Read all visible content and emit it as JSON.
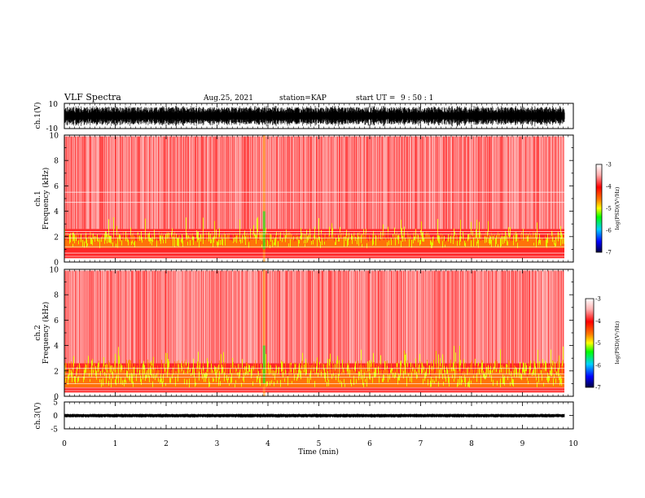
{
  "header": {
    "title": "VLF Spectra",
    "date": "Aug.25, 2021",
    "station": "station=KAP",
    "start_prefix": "start UT =",
    "start_time": "9 : 50 : 1"
  },
  "colors": {
    "spectrogram_base": "#ff2a2a",
    "spectrogram_band": "#ff8c00",
    "spectrogram_hot": "#e6ff00",
    "spectrogram_peak": "#22dd22",
    "waveform": "#000000",
    "colorbar": [
      "#ffffff",
      "#ff0000",
      "#ff6600",
      "#ffff00",
      "#00ff00",
      "#00ccff",
      "#0000ff",
      "#000044"
    ]
  },
  "chart_data": [
    {
      "type": "line",
      "name": "ch.1 waveform",
      "ylabel": "ch.1(V)",
      "ylim": [
        -10,
        10
      ],
      "yticks": [
        "10",
        "-10"
      ],
      "xlim": [
        0,
        10
      ],
      "amplitude_range_v": [
        -7,
        7
      ]
    },
    {
      "type": "heatmap",
      "name": "ch.1 spectrogram",
      "ylabel_line1": "ch.1",
      "ylabel_line2": "Frequency (kHz)",
      "ylim": [
        0,
        10
      ],
      "yticks": [
        "0",
        "2",
        "4",
        "6",
        "8",
        "10"
      ],
      "xlim": [
        0,
        10
      ],
      "colorbar": {
        "label": "log(PSD)(V²/Hz)",
        "range": [
          -7,
          -3
        ],
        "ticks": [
          "-3",
          "-4",
          "-5",
          "-6",
          "-7"
        ]
      }
    },
    {
      "type": "heatmap",
      "name": "ch.2 spectrogram",
      "ylabel_line1": "ch.2",
      "ylabel_line2": "Frequency (kHz)",
      "ylim": [
        0,
        10
      ],
      "yticks": [
        "0",
        "2",
        "4",
        "6",
        "8",
        "10"
      ],
      "xlim": [
        0,
        10
      ],
      "colorbar": {
        "label": "log(PSD)(V²/Hz)",
        "range": [
          -7,
          -3
        ],
        "ticks": [
          "-3",
          "-4",
          "-5",
          "-6",
          "-7"
        ]
      }
    },
    {
      "type": "line",
      "name": "ch.3 waveform",
      "ylabel": "ch.3(V)",
      "ylim": [
        -5,
        5
      ],
      "yticks": [
        "5",
        "0",
        "-5"
      ],
      "xlim": [
        0,
        10
      ],
      "amplitude_range_v": [
        -0.8,
        0.6
      ]
    }
  ],
  "xaxis": {
    "label": "Time (min)",
    "ticks": [
      "0",
      "1",
      "2",
      "3",
      "4",
      "5",
      "6",
      "7",
      "8",
      "9",
      "10"
    ],
    "data_end_min": 9.83
  }
}
